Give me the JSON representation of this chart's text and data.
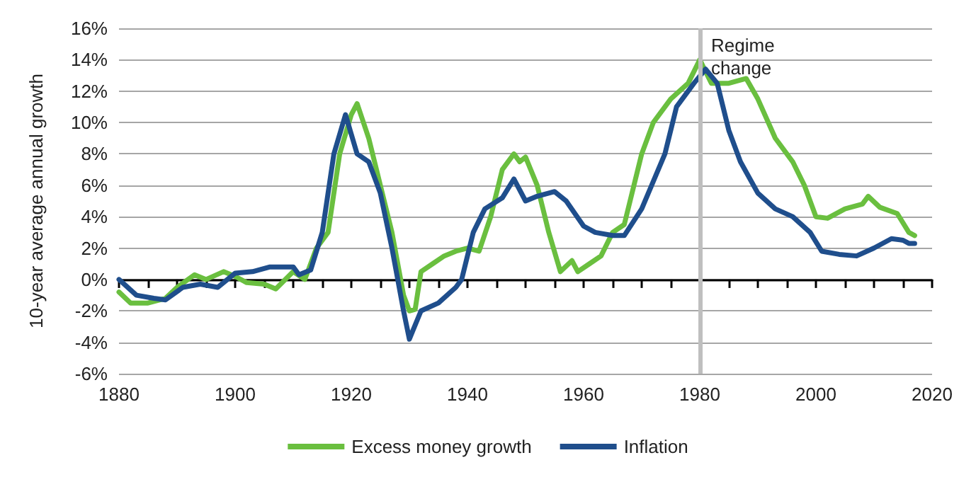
{
  "chart_data": {
    "type": "line",
    "ylabel": "10-year average annual growth",
    "xlim": [
      1880,
      2020
    ],
    "xticks": [
      1880,
      {
        "value": 1885,
        "label": null
      },
      1900,
      {
        "value": 1890,
        "label": null
      },
      {
        "value": 1895,
        "label": null
      },
      {
        "value": 1905,
        "label": null
      },
      {
        "value": 1910,
        "label": null
      },
      {
        "value": 1915,
        "label": null
      },
      1920,
      {
        "value": 1925,
        "label": null
      },
      {
        "value": 1930,
        "label": null
      },
      {
        "value": 1935,
        "label": null
      },
      1940,
      {
        "value": 1945,
        "label": null
      },
      {
        "value": 1950,
        "label": null
      },
      {
        "value": 1955,
        "label": null
      },
      1960,
      {
        "value": 1965,
        "label": null
      },
      {
        "value": 1970,
        "label": null
      },
      {
        "value": 1975,
        "label": null
      },
      1980,
      {
        "value": 1985,
        "label": null
      },
      {
        "value": 1990,
        "label": null
      },
      {
        "value": 1995,
        "label": null
      },
      2000,
      {
        "value": 2005,
        "label": null
      },
      {
        "value": 2010,
        "label": null
      },
      {
        "value": 2015,
        "label": null
      },
      2020
    ],
    "ylim": [
      -6,
      16
    ],
    "yticks": [
      {
        "value": -6,
        "label": "-6%"
      },
      {
        "value": -4,
        "label": "-4%"
      },
      {
        "value": -2,
        "label": "-2%"
      },
      {
        "value": 0,
        "label": "0%"
      },
      {
        "value": 2,
        "label": "2%"
      },
      {
        "value": 4,
        "label": "4%"
      },
      {
        "value": 6,
        "label": "6%"
      },
      {
        "value": 8,
        "label": "8%"
      },
      {
        "value": 10,
        "label": "10%"
      },
      {
        "value": 12,
        "label": "12%"
      },
      {
        "value": 14,
        "label": "14%"
      },
      {
        "value": 16,
        "label": "16%"
      }
    ],
    "grid": "y",
    "legend": "bottom",
    "marker": "none",
    "line_style": "solid",
    "ref_lines": [
      {
        "axis": "x",
        "value": 1980,
        "label": "Regime change",
        "color": "#bfbfbf"
      }
    ],
    "series": [
      {
        "name": "Excess money growth",
        "color": "#6abf3f",
        "x": [
          1880,
          1882,
          1885,
          1888,
          1890,
          1893,
          1895,
          1898,
          1900,
          1902,
          1905,
          1907,
          1910,
          1912,
          1914,
          1916,
          1918,
          1920,
          1921,
          1923,
          1925,
          1927,
          1929,
          1930,
          1931,
          1932,
          1934,
          1936,
          1938,
          1940,
          1942,
          1944,
          1946,
          1948,
          1949,
          1950,
          1952,
          1954,
          1956,
          1958,
          1959,
          1961,
          1963,
          1965,
          1967,
          1970,
          1972,
          1975,
          1978,
          1980,
          1982,
          1985,
          1988,
          1990,
          1993,
          1996,
          1998,
          2000,
          2002,
          2005,
          2008,
          2009,
          2011,
          2014,
          2016,
          2017
        ],
        "values": [
          -0.8,
          -1.5,
          -1.5,
          -1.2,
          -0.5,
          0.3,
          0,
          0.5,
          0.2,
          -0.2,
          -0.3,
          -0.6,
          0.5,
          0,
          2,
          3,
          8,
          10.5,
          11.2,
          9,
          6,
          3,
          -1,
          -2,
          -1.9,
          0.5,
          1,
          1.5,
          1.8,
          2,
          1.8,
          4,
          7,
          8,
          7.5,
          7.8,
          6,
          3,
          0.5,
          1.2,
          0.5,
          1,
          1.5,
          3,
          3.5,
          8,
          10,
          11.5,
          12.5,
          14,
          12.5,
          12.5,
          12.8,
          11.5,
          9,
          7.5,
          6,
          4,
          3.9,
          4.5,
          4.8,
          5.3,
          4.6,
          4.2,
          3,
          2.8
        ]
      },
      {
        "name": "Inflation",
        "color": "#1f4e8c",
        "x": [
          1880,
          1883,
          1886,
          1888,
          1891,
          1894,
          1897,
          1900,
          1903,
          1906,
          1910,
          1911,
          1913,
          1915,
          1917,
          1919,
          1921,
          1923,
          1925,
          1927,
          1929,
          1930,
          1932,
          1935,
          1938,
          1939,
          1941,
          1943,
          1946,
          1948,
          1950,
          1952,
          1955,
          1957,
          1960,
          1962,
          1965,
          1967,
          1970,
          1974,
          1976,
          1979,
          1981,
          1983,
          1985,
          1987,
          1990,
          1993,
          1996,
          1999,
          2001,
          2004,
          2007,
          2010,
          2013,
          2015,
          2016,
          2017
        ],
        "values": [
          0,
          -1,
          -1.2,
          -1.3,
          -0.5,
          -0.3,
          -0.5,
          0.4,
          0.5,
          0.8,
          0.8,
          0.3,
          0.6,
          3,
          8,
          10.5,
          8,
          7.5,
          5.5,
          2,
          -2,
          -3.8,
          -2,
          -1.5,
          -0.5,
          0,
          3,
          4.5,
          5.2,
          6.4,
          5,
          5.3,
          5.6,
          5,
          3.4,
          3,
          2.8,
          2.8,
          4.5,
          8,
          11,
          12.5,
          13.4,
          12.5,
          9.5,
          7.5,
          5.5,
          4.5,
          4,
          3,
          1.8,
          1.6,
          1.5,
          2,
          2.6,
          2.5,
          2.3,
          2.3
        ]
      }
    ]
  }
}
